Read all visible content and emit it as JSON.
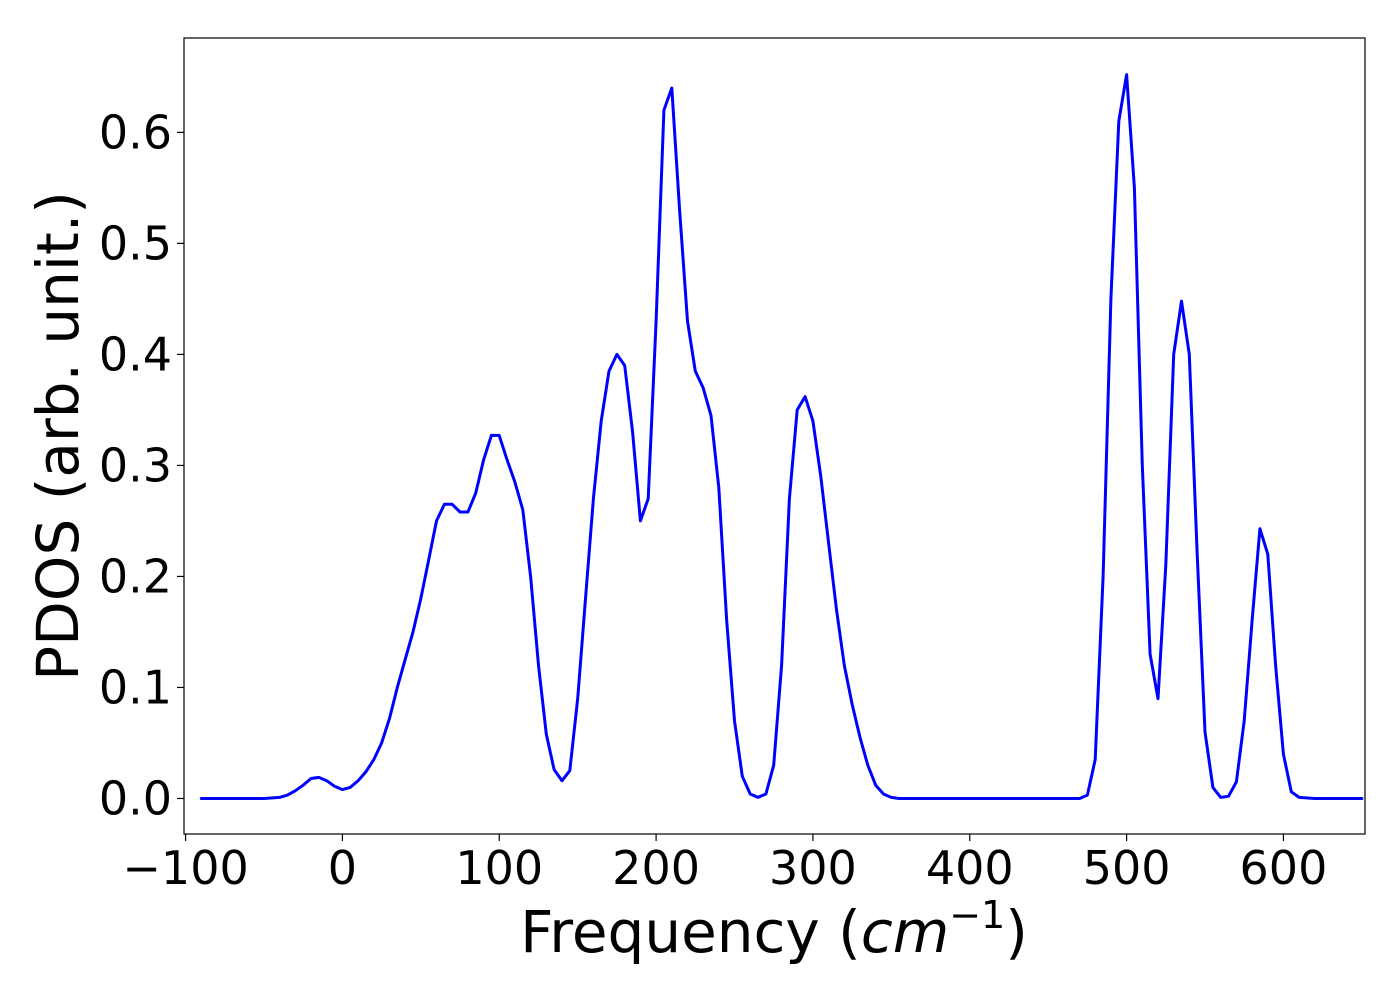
{
  "chart_data": {
    "type": "line",
    "title": "",
    "xlabel": "Frequency (cm^-1)",
    "xlabel_parts": {
      "prefix": "Frequency (",
      "unit": "cm",
      "exponent": "−1",
      "suffix": ")"
    },
    "ylabel": "PDOS (arb. unit.)",
    "xlim": [
      -101,
      652
    ],
    "ylim": [
      -0.032,
      0.685
    ],
    "xticks": [
      -100,
      0,
      100,
      200,
      300,
      400,
      500,
      600
    ],
    "xtick_labels": [
      "−100",
      "0",
      "100",
      "200",
      "300",
      "400",
      "500",
      "600"
    ],
    "yticks": [
      0.0,
      0.1,
      0.2,
      0.3,
      0.4,
      0.5,
      0.6
    ],
    "ytick_labels": [
      "0.0",
      "0.1",
      "0.2",
      "0.3",
      "0.4",
      "0.5",
      "0.6"
    ],
    "grid": false,
    "legend": "none",
    "color": "#0000ff",
    "series": [
      {
        "x": [
          -90,
          -50,
          -40,
          -35,
          -30,
          -25,
          -20,
          -15,
          -10,
          -5,
          0,
          5,
          10,
          15,
          20,
          25,
          30,
          35,
          40,
          45,
          50,
          55,
          60,
          65,
          70,
          75,
          80,
          85,
          90,
          95,
          100,
          105,
          110,
          115,
          120,
          125,
          130,
          135,
          140,
          145,
          150,
          155,
          160,
          165,
          170,
          175,
          180,
          185,
          190,
          195,
          200,
          205,
          210,
          215,
          220,
          225,
          230,
          235,
          240,
          245,
          250,
          255,
          260,
          265,
          270,
          275,
          280,
          285,
          290,
          295,
          300,
          305,
          310,
          315,
          320,
          325,
          330,
          335,
          340,
          345,
          350,
          355,
          360,
          400,
          470,
          475,
          480,
          485,
          490,
          495,
          500,
          505,
          510,
          515,
          520,
          525,
          530,
          535,
          540,
          545,
          550,
          555,
          560,
          565,
          570,
          575,
          580,
          585,
          590,
          595,
          600,
          605,
          610,
          620,
          650
        ],
        "y": [
          0.0,
          0.0,
          0.001,
          0.003,
          0.007,
          0.012,
          0.018,
          0.019,
          0.016,
          0.011,
          0.008,
          0.01,
          0.016,
          0.024,
          0.035,
          0.05,
          0.072,
          0.1,
          0.125,
          0.15,
          0.18,
          0.215,
          0.25,
          0.265,
          0.265,
          0.258,
          0.258,
          0.275,
          0.305,
          0.327,
          0.327,
          0.305,
          0.285,
          0.26,
          0.2,
          0.12,
          0.058,
          0.026,
          0.016,
          0.025,
          0.09,
          0.18,
          0.27,
          0.34,
          0.385,
          0.4,
          0.39,
          0.33,
          0.25,
          0.27,
          0.43,
          0.62,
          0.64,
          0.53,
          0.43,
          0.385,
          0.37,
          0.345,
          0.28,
          0.16,
          0.07,
          0.02,
          0.004,
          0.001,
          0.004,
          0.03,
          0.12,
          0.27,
          0.35,
          0.362,
          0.34,
          0.29,
          0.23,
          0.17,
          0.12,
          0.085,
          0.055,
          0.03,
          0.012,
          0.004,
          0.001,
          0.0,
          0.0,
          0.0,
          0.0,
          0.003,
          0.035,
          0.2,
          0.45,
          0.61,
          0.652,
          0.55,
          0.3,
          0.13,
          0.09,
          0.21,
          0.4,
          0.448,
          0.4,
          0.22,
          0.06,
          0.01,
          0.001,
          0.002,
          0.015,
          0.07,
          0.16,
          0.243,
          0.22,
          0.12,
          0.04,
          0.006,
          0.001,
          0.0,
          0.0
        ]
      }
    ]
  }
}
